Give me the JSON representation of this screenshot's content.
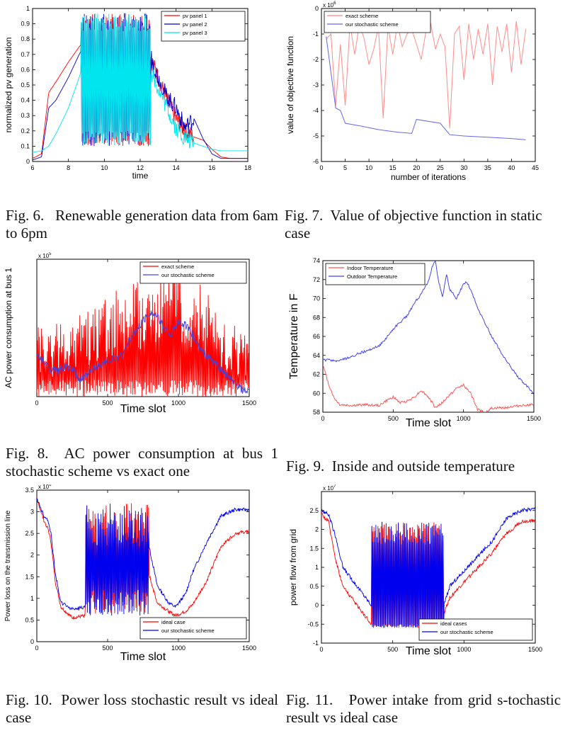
{
  "captions": [
    {
      "label": "Fig. 6.",
      "text": "Renewable generation data from 6am to 6pm"
    },
    {
      "label": "Fig. 7.",
      "text": "Value of objective function in static case"
    },
    {
      "label": "Fig. 8.",
      "text": "AC power consumption at bus 1 stochastic scheme vs exact one"
    },
    {
      "label": "Fig. 9.",
      "text": "Inside and outside temperature"
    },
    {
      "label": "Fig. 10.",
      "text": "Power loss stochastic result vs ideal case"
    },
    {
      "label": "Fig. 11.",
      "text": "Power intake from grid s-tochastic result vs ideal case"
    }
  ],
  "chart_data": [
    {
      "id": "fig6",
      "type": "line",
      "title": "",
      "xlabel": "time",
      "ylabel": "normalized pv generation",
      "xlim": [
        6,
        18
      ],
      "ylim": [
        0,
        1
      ],
      "xticks": [
        6,
        8,
        10,
        12,
        14,
        16,
        18
      ],
      "yticks": [
        0,
        0.1,
        0.2,
        0.3,
        0.4,
        0.5,
        0.6,
        0.7,
        0.8,
        0.9,
        1
      ],
      "ytick_labels": [
        "0",
        "0.1",
        "0.2",
        "0.3",
        "0.4",
        "0.5",
        "0.6",
        "0.7",
        "0.8",
        "0.9",
        "1"
      ],
      "legend": "top-right",
      "series": [
        {
          "name": "pv panel 1",
          "color": "#ff0000",
          "x": [
            6,
            6.5,
            6.9,
            7.3,
            8,
            8.6,
            9,
            10,
            11,
            12,
            12.5,
            13,
            13.5,
            14,
            14.5,
            15,
            15.5,
            16,
            16.5,
            17,
            18
          ],
          "y": [
            0.02,
            0.05,
            0.45,
            0.52,
            0.65,
            0.75,
            0.8,
            0.85,
            0.85,
            0.82,
            0.7,
            0.55,
            0.4,
            0.28,
            0.2,
            0.16,
            0.14,
            0.08,
            0.03,
            0.02,
            0.02
          ]
        },
        {
          "name": "pv panel 2",
          "color": "#0000cc",
          "x": [
            6,
            6.5,
            6.9,
            7.3,
            8,
            8.6,
            9,
            10,
            11,
            12,
            12.5,
            13,
            13.5,
            14,
            14.5,
            15,
            15.5,
            16,
            16.5,
            17,
            18
          ],
          "y": [
            0.01,
            0.03,
            0.35,
            0.4,
            0.55,
            0.7,
            0.78,
            0.85,
            0.88,
            0.85,
            0.72,
            0.55,
            0.42,
            0.35,
            0.22,
            0.28,
            0.15,
            0.05,
            0.02,
            0.02,
            0.02
          ]
        },
        {
          "name": "pv panel 3",
          "color": "#00e5ee",
          "x": [
            6,
            6.5,
            6.9,
            7.3,
            8,
            8.6,
            9,
            10,
            11,
            12,
            12.5,
            13,
            13.5,
            14,
            14.5,
            15,
            15.5,
            16,
            16.5,
            17,
            18
          ],
          "y": [
            0.06,
            0.07,
            0.1,
            0.18,
            0.35,
            0.55,
            0.7,
            0.8,
            0.82,
            0.78,
            0.62,
            0.48,
            0.35,
            0.22,
            0.15,
            0.12,
            0.1,
            0.08,
            0.07,
            0.07,
            0.07
          ]
        }
      ]
    },
    {
      "id": "fig7",
      "type": "line",
      "title": "",
      "xlabel": "number of iterations",
      "ylabel": "value of objective function",
      "exponent": "x 10",
      "exponent_power": "6",
      "xlim": [
        0,
        45
      ],
      "ylim": [
        -6,
        0
      ],
      "xticks": [
        0,
        5,
        10,
        15,
        20,
        25,
        30,
        35,
        40,
        45
      ],
      "yticks": [
        -6,
        -5,
        -4,
        -3,
        -2,
        -1,
        0
      ],
      "legend": "top-left",
      "series": [
        {
          "name": "exact scheme",
          "color": "#ff8080",
          "x": [
            1,
            2,
            3,
            4,
            5,
            6,
            7,
            8,
            9,
            10,
            11,
            12,
            13,
            14,
            15,
            16,
            17,
            18,
            19,
            20,
            21,
            22,
            23,
            24,
            25,
            26,
            27,
            28,
            29,
            30,
            31,
            32,
            33,
            34,
            35,
            36,
            37,
            38,
            39,
            40,
            41,
            42,
            43
          ],
          "y": [
            -1.2,
            -1.0,
            -3.8,
            -1.4,
            -3.8,
            -0.6,
            -1.8,
            -0.6,
            -1.2,
            -2.2,
            -1.6,
            -0.7,
            -4.3,
            -0.7,
            -1.8,
            -0.6,
            -1.5,
            -1.0,
            -0.8,
            -1.4,
            -2.0,
            -0.9,
            -0.6,
            -1.6,
            -1.0,
            -1.5,
            -4.7,
            -1.0,
            -0.7,
            -2.8,
            -0.6,
            -2.0,
            -0.8,
            -1.8,
            -0.6,
            -3.0,
            -0.7,
            -1.7,
            -0.6,
            -2.5,
            -0.5,
            -2.2,
            -0.8
          ]
        },
        {
          "name": "our stochastic scheme",
          "color": "#6666ee",
          "x": [
            1,
            2,
            3,
            4,
            5,
            8,
            12,
            16,
            19,
            20,
            25,
            27,
            30,
            35,
            40,
            43
          ],
          "y": [
            -1.1,
            -2.5,
            -3.9,
            -4.0,
            -4.5,
            -4.6,
            -4.75,
            -4.85,
            -4.9,
            -4.35,
            -4.5,
            -4.95,
            -5.0,
            -5.05,
            -5.1,
            -5.15
          ]
        }
      ]
    },
    {
      "id": "fig8",
      "type": "line",
      "title": "",
      "xlabel": "Time slot",
      "ylabel": "AC power consumption at bus 1",
      "exponent": "x 10",
      "exponent_power": "5",
      "xlim": [
        0,
        1500
      ],
      "ylim": [
        0,
        10
      ],
      "xticks": [
        0,
        500,
        1000,
        1500
      ],
      "yticks": [],
      "legend": "top-right",
      "series": [
        {
          "name": "exact scheme",
          "color": "#ff0000",
          "x": [
            0,
            150,
            300,
            450,
            600,
            750,
            900,
            1000,
            1100,
            1200,
            1350,
            1500
          ],
          "y": [
            1.2,
            1.5,
            1.8,
            2.3,
            2.8,
            3.2,
            3.6,
            3.8,
            3.4,
            2.8,
            1.5,
            0.8
          ]
        },
        {
          "name": "our stochastic scheme",
          "color": "#4444dd",
          "x": [
            0,
            100,
            150,
            200,
            250,
            300,
            350,
            420,
            500,
            600,
            650,
            700,
            750,
            800,
            850,
            900,
            950,
            1000,
            1050,
            1100,
            1150,
            1200,
            1300,
            1400,
            1450,
            1500
          ],
          "y": [
            3.0,
            2.0,
            1.8,
            2.2,
            2.0,
            1.2,
            1.5,
            2.2,
            2.6,
            3.0,
            4.0,
            4.8,
            5.5,
            6.2,
            5.8,
            5.0,
            4.5,
            5.5,
            5.2,
            4.5,
            3.5,
            3.0,
            2.0,
            0.9,
            0.5,
            0.3
          ]
        }
      ]
    },
    {
      "id": "fig9",
      "type": "line",
      "title": "",
      "xlabel": "Time slot",
      "ylabel": "Temperature in F",
      "xlim": [
        0,
        1500
      ],
      "ylim": [
        58,
        74
      ],
      "xticks": [
        0,
        500,
        1000,
        1500
      ],
      "yticks": [
        58,
        60,
        62,
        64,
        66,
        68,
        70,
        72,
        74
      ],
      "legend": "top-left",
      "series": [
        {
          "name": "Indoor Temperature",
          "color": "#ff5555",
          "x": [
            0,
            40,
            80,
            120,
            200,
            300,
            400,
            450,
            500,
            550,
            600,
            650,
            700,
            750,
            800,
            850,
            900,
            950,
            1000,
            1050,
            1100,
            1150,
            1200,
            1300,
            1400,
            1500
          ],
          "y": [
            63.0,
            61.0,
            59.5,
            58.8,
            58.7,
            58.8,
            58.7,
            59.2,
            59.6,
            59.0,
            59.2,
            59.6,
            60.3,
            59.6,
            58.5,
            59.0,
            59.8,
            60.5,
            60.9,
            60.0,
            58.3,
            58.0,
            58.4,
            58.5,
            58.7,
            58.8
          ]
        },
        {
          "name": "Outdoor Temperature",
          "color": "#4444ee",
          "x": [
            0,
            50,
            100,
            150,
            200,
            250,
            300,
            350,
            400,
            450,
            500,
            550,
            600,
            650,
            700,
            750,
            780,
            800,
            820,
            850,
            880,
            900,
            950,
            1000,
            1020,
            1050,
            1100,
            1150,
            1200,
            1300,
            1400,
            1500
          ],
          "y": [
            63.5,
            63.5,
            63.4,
            63.6,
            63.8,
            64.2,
            64.4,
            64.7,
            65.0,
            65.8,
            66.8,
            67.5,
            68.2,
            69.5,
            70.5,
            71.8,
            73.5,
            74.0,
            72.0,
            70.2,
            72.5,
            71.0,
            70.0,
            71.5,
            71.8,
            71.0,
            69.0,
            67.5,
            66.0,
            63.5,
            61.5,
            60.0
          ]
        }
      ]
    },
    {
      "id": "fig10",
      "type": "line",
      "title": "",
      "xlabel": "Time slot",
      "ylabel": "Power loss on the transmission line",
      "exponent": "x 10",
      "exponent_power": "6",
      "xlim": [
        0,
        1500
      ],
      "ylim": [
        0,
        3.5
      ],
      "xticks": [
        0,
        500,
        1000,
        1500
      ],
      "yticks": [
        0,
        0.5,
        1,
        1.5,
        2,
        2.5,
        3,
        3.5
      ],
      "legend": "bottom-right",
      "series": [
        {
          "name": "ideal case",
          "color": "#ff0000",
          "x": [
            0,
            50,
            80,
            100,
            130,
            170,
            250,
            340,
            400,
            500,
            600,
            700,
            780,
            850,
            930,
            980,
            1050,
            1100,
            1200,
            1300,
            1400,
            1500
          ],
          "y": [
            3.3,
            2.8,
            2.6,
            2.3,
            1.4,
            0.8,
            0.55,
            0.6,
            1.6,
            1.9,
            1.85,
            1.8,
            1.7,
            0.9,
            0.7,
            0.6,
            0.7,
            0.85,
            1.4,
            2.2,
            2.5,
            2.55
          ]
        },
        {
          "name": "our stochastic scheme",
          "color": "#0000ee",
          "x": [
            0,
            50,
            80,
            100,
            130,
            170,
            250,
            340,
            400,
            500,
            600,
            700,
            780,
            850,
            930,
            980,
            1050,
            1100,
            1200,
            1300,
            1400,
            1500
          ],
          "y": [
            3.3,
            2.9,
            2.8,
            2.5,
            1.6,
            0.9,
            0.75,
            0.8,
            1.8,
            2.2,
            2.3,
            2.4,
            2.4,
            1.3,
            0.9,
            0.8,
            1.1,
            1.6,
            2.3,
            2.9,
            3.05,
            3.05
          ]
        }
      ]
    },
    {
      "id": "fig11",
      "type": "line",
      "title": "",
      "xlabel": "Time slot",
      "ylabel": "power flow from grid",
      "exponent": "x 10",
      "exponent_power": "7",
      "xlim": [
        0,
        1500
      ],
      "ylim": [
        -1,
        3
      ],
      "xticks": [
        0,
        500,
        1000,
        1500
      ],
      "xtick_labels": [
        "0",
        "500",
        "1000",
        "1500"
      ],
      "yticks": [
        -1,
        -0.5,
        0,
        0.5,
        1,
        1.5,
        2,
        2.5
      ],
      "ytick_labels": [
        "-1",
        "-0.5",
        "0",
        "0.5",
        "1",
        "1.5",
        "2",
        "2.5"
      ],
      "legend": "bottom-right",
      "series": [
        {
          "name": "ideal cases",
          "color": "#ff0000",
          "x": [
            0,
            50,
            100,
            150,
            250,
            350,
            420,
            500,
            600,
            700,
            800,
            850,
            900,
            1000,
            1100,
            1200,
            1300,
            1400,
            1500
          ],
          "y": [
            2.4,
            2.2,
            1.2,
            0.5,
            0.0,
            -0.5,
            -0.5,
            -0.6,
            -0.5,
            -0.45,
            -0.5,
            -0.3,
            0.2,
            0.6,
            1.0,
            1.4,
            1.9,
            2.2,
            2.25
          ]
        },
        {
          "name": "our stochastic scheme",
          "color": "#0000ee",
          "x": [
            0,
            50,
            100,
            150,
            250,
            350,
            420,
            500,
            600,
            700,
            800,
            850,
            900,
            1000,
            1100,
            1200,
            1300,
            1400,
            1500
          ],
          "y": [
            2.5,
            2.4,
            1.8,
            1.0,
            0.5,
            0.0,
            -0.3,
            -0.4,
            -0.35,
            -0.3,
            -0.4,
            -0.1,
            0.5,
            0.9,
            1.3,
            1.7,
            2.3,
            2.5,
            2.55
          ]
        }
      ]
    }
  ]
}
